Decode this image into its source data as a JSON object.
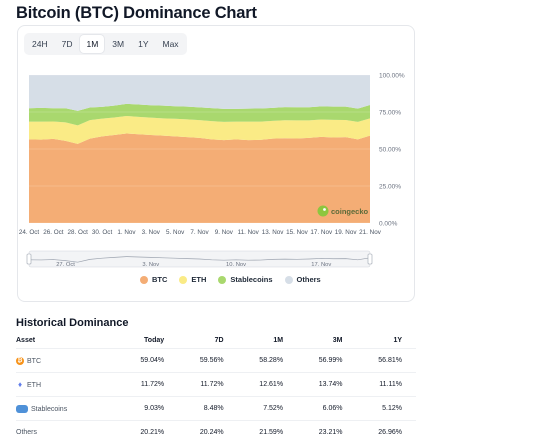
{
  "page_title": "Bitcoin (BTC) Dominance Chart",
  "range_tabs": [
    {
      "label": "24H",
      "active": false
    },
    {
      "label": "7D",
      "active": false
    },
    {
      "label": "1M",
      "active": true
    },
    {
      "label": "3M",
      "active": false
    },
    {
      "label": "1Y",
      "active": false
    },
    {
      "label": "Max",
      "active": false
    }
  ],
  "watermark": "coingecko",
  "colors": {
    "btc": "#f4ad75",
    "eth": "#faeb86",
    "stablecoins": "#a9d86e",
    "others": "#d6dee7",
    "accent": "#f7931a"
  },
  "chart_data": {
    "type": "area",
    "stacked": true,
    "title": "",
    "xlabel": "",
    "ylabel": "",
    "ylim": [
      0,
      100
    ],
    "y_ticks": [
      "0.00%",
      "25.00%",
      "50.00%",
      "75.00%",
      "100.00%"
    ],
    "categories": [
      "24. Oct",
      "25. Oct",
      "26. Oct",
      "27. Oct",
      "28. Oct",
      "29. Oct",
      "30. Oct",
      "31. Oct",
      "1. Nov",
      "2. Nov",
      "3. Nov",
      "4. Nov",
      "5. Nov",
      "6. Nov",
      "7. Nov",
      "8. Nov",
      "9. Nov",
      "10. Nov",
      "11. Nov",
      "12. Nov",
      "13. Nov",
      "14. Nov",
      "15. Nov",
      "16. Nov",
      "17. Nov",
      "18. Nov",
      "19. Nov",
      "20. Nov",
      "21. Nov"
    ],
    "x_tick_labels": [
      "24. Oct",
      "26. Oct",
      "28. Oct",
      "30. Oct",
      "1. Nov",
      "3. Nov",
      "5. Nov",
      "7. Nov",
      "9. Nov",
      "11. Nov",
      "13. Nov",
      "15. Nov",
      "17. Nov",
      "19. Nov",
      "21. Nov"
    ],
    "series": [
      {
        "name": "BTC",
        "values": [
          56.5,
          56.3,
          56.8,
          55.5,
          53.5,
          57.0,
          58.5,
          59.5,
          60.5,
          60.0,
          59.5,
          59.0,
          58.5,
          58.0,
          57.5,
          56.5,
          56.0,
          56.5,
          56.0,
          56.2,
          57.0,
          57.3,
          57.1,
          57.5,
          58.2,
          57.8,
          58.0,
          56.5,
          59.0
        ]
      },
      {
        "name": "ETH",
        "values": [
          12.0,
          12.2,
          11.8,
          12.5,
          12.5,
          12.5,
          12.0,
          11.8,
          11.8,
          11.7,
          11.7,
          11.7,
          11.9,
          12.0,
          12.0,
          12.3,
          12.3,
          12.0,
          12.5,
          12.3,
          12.0,
          12.1,
          12.2,
          11.8,
          11.7,
          11.9,
          11.6,
          11.8,
          11.7
        ]
      },
      {
        "name": "Stablecoins",
        "values": [
          9.0,
          9.3,
          8.9,
          9.5,
          9.8,
          8.5,
          8.0,
          8.0,
          8.2,
          8.4,
          8.4,
          8.6,
          8.5,
          8.6,
          8.6,
          8.8,
          8.8,
          8.6,
          8.8,
          8.9,
          8.8,
          8.9,
          8.9,
          8.9,
          8.9,
          8.9,
          9.0,
          9.0,
          9.0
        ]
      },
      {
        "name": "Others",
        "values": [
          22.5,
          22.2,
          22.5,
          22.5,
          24.2,
          22.0,
          21.5,
          20.7,
          19.5,
          19.9,
          20.4,
          20.7,
          21.1,
          21.4,
          21.9,
          22.4,
          22.9,
          22.9,
          22.7,
          22.6,
          22.2,
          21.7,
          21.8,
          21.8,
          21.2,
          21.4,
          21.4,
          22.7,
          20.3
        ]
      }
    ],
    "navigator_labels": [
      "27. Oct",
      "3. Nov",
      "10. Nov",
      "17. Nov"
    ],
    "legend_position": "bottom",
    "grid": true
  },
  "historical": {
    "title": "Historical Dominance",
    "columns": [
      "Asset",
      "Today",
      "7D",
      "1M",
      "3M",
      "1Y"
    ],
    "rows": [
      {
        "asset": "BTC",
        "icon": "bitcoin-icon",
        "values": [
          "59.04%",
          "59.56%",
          "58.28%",
          "56.99%",
          "56.81%"
        ]
      },
      {
        "asset": "ETH",
        "icon": "ethereum-icon",
        "values": [
          "11.72%",
          "11.72%",
          "12.61%",
          "13.74%",
          "11.11%"
        ]
      },
      {
        "asset": "Stablecoins",
        "icon": "stablecoins-icon",
        "values": [
          "9.03%",
          "8.48%",
          "7.52%",
          "6.06%",
          "5.12%"
        ]
      },
      {
        "asset": "Others",
        "icon": "",
        "values": [
          "20.21%",
          "20.24%",
          "21.59%",
          "23.21%",
          "26.96%"
        ]
      }
    ]
  }
}
